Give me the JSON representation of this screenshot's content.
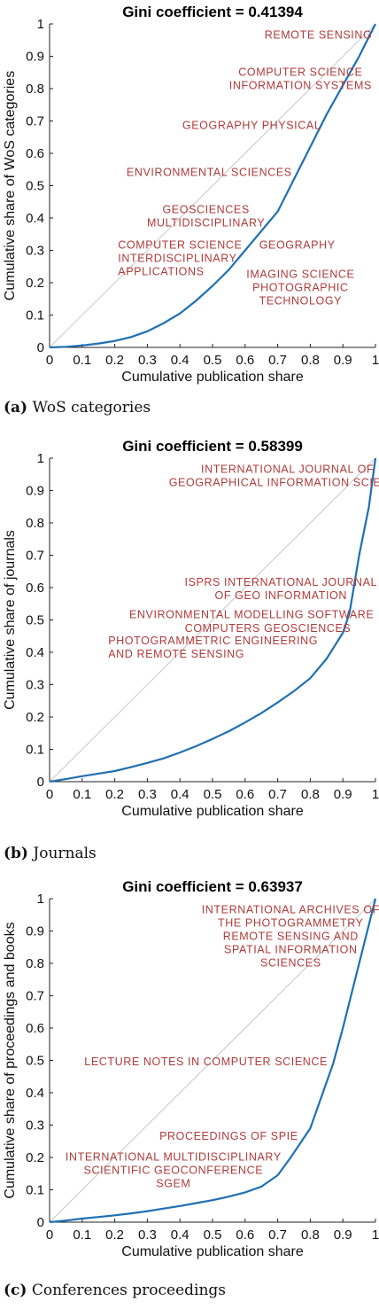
{
  "colors": {
    "curve": "#1f6fb2",
    "diagonal": "#c8c8c8",
    "annotation": "#b03a3a"
  },
  "chart_data": [
    {
      "type": "line",
      "title": "Gini coefficient = 0.41394",
      "xlabel": "Cumulative publication share",
      "ylabel": "Cumulative share of WoS categories",
      "xlim": [
        0,
        1
      ],
      "ylim": [
        0,
        1
      ],
      "x_ticks": [
        "0",
        "0.1",
        "0.2",
        "0.3",
        "0.4",
        "0.5",
        "0.6",
        "0.7",
        "0.8",
        "0.9",
        "1"
      ],
      "y_ticks": [
        "0",
        "0.1",
        "0.2",
        "0.3",
        "0.4",
        "0.5",
        "0.6",
        "0.7",
        "0.8",
        "0.9",
        "1"
      ],
      "x": [
        0,
        0.05,
        0.1,
        0.15,
        0.2,
        0.25,
        0.3,
        0.35,
        0.4,
        0.45,
        0.5,
        0.55,
        0.6,
        0.65,
        0.7,
        0.75,
        0.8,
        0.85,
        0.9,
        0.95,
        1.0
      ],
      "y": [
        0,
        0.002,
        0.006,
        0.012,
        0.02,
        0.032,
        0.05,
        0.075,
        0.105,
        0.145,
        0.19,
        0.24,
        0.3,
        0.36,
        0.42,
        0.52,
        0.62,
        0.72,
        0.81,
        0.9,
        1.0
      ],
      "annotations": [
        {
          "lines": [
            "REMOTE SENSING"
          ],
          "x": 0.99,
          "y": 0.955,
          "anchor": "end"
        },
        {
          "lines": [
            "COMPUTER SCIENCE",
            "INFORMATION SYSTEMS"
          ],
          "x": 0.77,
          "y": 0.84,
          "anchor": "middle"
        },
        {
          "lines": [
            "GEOGRAPHY PHYSICAL"
          ],
          "x": 0.62,
          "y": 0.675,
          "anchor": "middle"
        },
        {
          "lines": [
            "ENVIRONMENTAL SCIENCES"
          ],
          "x": 0.49,
          "y": 0.53,
          "anchor": "middle"
        },
        {
          "lines": [
            "GEOSCIENCES",
            "MULTIDISCIPLINARY"
          ],
          "x": 0.48,
          "y": 0.415,
          "anchor": "middle"
        },
        {
          "lines": [
            "GEOGRAPHY"
          ],
          "x": 0.76,
          "y": 0.305,
          "anchor": "middle"
        },
        {
          "lines": [
            "COMPUTER SCIENCE",
            "INTERDISCIPLINARY",
            "APPLICATIONS"
          ],
          "x": 0.21,
          "y": 0.305,
          "anchor": "start"
        },
        {
          "lines": [
            "IMAGING SCIENCE",
            "PHOTOGRAPHIC",
            "TECHNOLOGY"
          ],
          "x": 0.77,
          "y": 0.215,
          "anchor": "middle"
        }
      ],
      "caption_label": "(a)",
      "caption_text": " WoS categories"
    },
    {
      "type": "line",
      "title": "Gini coefficient = 0.58399",
      "xlabel": "Cumulative publication share",
      "ylabel": "Cumulative share of journals",
      "xlim": [
        0,
        1
      ],
      "ylim": [
        0,
        1
      ],
      "x_ticks": [
        "0",
        "0.1",
        "0.2",
        "0.3",
        "0.4",
        "0.5",
        "0.6",
        "0.7",
        "0.8",
        "0.9",
        "1"
      ],
      "y_ticks": [
        "0",
        "0.1",
        "0.2",
        "0.3",
        "0.4",
        "0.5",
        "0.6",
        "0.7",
        "0.8",
        "0.9",
        "1"
      ],
      "x": [
        0,
        0.05,
        0.1,
        0.15,
        0.2,
        0.25,
        0.3,
        0.35,
        0.4,
        0.45,
        0.5,
        0.55,
        0.6,
        0.65,
        0.7,
        0.75,
        0.8,
        0.85,
        0.9,
        0.92,
        0.95,
        0.98,
        1.0
      ],
      "y": [
        0,
        0.008,
        0.017,
        0.025,
        0.033,
        0.045,
        0.058,
        0.072,
        0.09,
        0.11,
        0.132,
        0.156,
        0.183,
        0.212,
        0.245,
        0.28,
        0.32,
        0.38,
        0.46,
        0.52,
        0.7,
        0.85,
        1.0
      ],
      "annotations": [
        {
          "lines": [
            "INTERNATIONAL JOURNAL OF",
            "GEOGRAPHICAL INFORMATION SCIENCE"
          ],
          "x": 0.73,
          "y": 0.955,
          "anchor": "middle"
        },
        {
          "lines": [
            "ISPRS INTERNATIONAL JOURNAL",
            "OF GEO INFORMATION"
          ],
          "x": 0.71,
          "y": 0.605,
          "anchor": "middle"
        },
        {
          "lines": [
            "ENVIRONMENTAL MODELLING SOFTWARE"
          ],
          "x": 0.62,
          "y": 0.505,
          "anchor": "middle"
        },
        {
          "lines": [
            "COMPUTERS GEOSCIENCES"
          ],
          "x": 0.67,
          "y": 0.463,
          "anchor": "middle"
        },
        {
          "lines": [
            "PHOTOGRAMMETRIC ENGINEERING",
            "AND REMOTE SENSING"
          ],
          "x": 0.18,
          "y": 0.425,
          "anchor": "start"
        }
      ],
      "caption_label": "(b)",
      "caption_text": " Journals"
    },
    {
      "type": "line",
      "title": "Gini coefficient = 0.63937",
      "xlabel": "Cumulative publication share",
      "ylabel": "Cumulative share of proceedings and books",
      "xlim": [
        0,
        1
      ],
      "ylim": [
        0,
        1
      ],
      "x_ticks": [
        "0",
        "0.1",
        "0.2",
        "0.3",
        "0.4",
        "0.5",
        "0.6",
        "0.7",
        "0.8",
        "0.9",
        "1"
      ],
      "y_ticks": [
        "0",
        "0.1",
        "0.2",
        "0.3",
        "0.4",
        "0.5",
        "0.6",
        "0.7",
        "0.8",
        "0.9",
        "1"
      ],
      "x": [
        0,
        0.05,
        0.1,
        0.15,
        0.2,
        0.25,
        0.3,
        0.35,
        0.4,
        0.45,
        0.5,
        0.55,
        0.6,
        0.65,
        0.7,
        0.74,
        0.8,
        0.87,
        0.9,
        0.95,
        1.0
      ],
      "y": [
        0,
        0.005,
        0.011,
        0.016,
        0.021,
        0.027,
        0.034,
        0.042,
        0.05,
        0.059,
        0.068,
        0.079,
        0.092,
        0.11,
        0.145,
        0.2,
        0.29,
        0.49,
        0.6,
        0.8,
        1.0
      ],
      "annotations": [
        {
          "lines": [
            "INTERNATIONAL ARCHIVES OF",
            "THE PHOTOGRAMMETRY",
            "REMOTE SENSING AND",
            "SPATIAL INFORMATION",
            "SCIENCES"
          ],
          "x": 0.74,
          "y": 0.955,
          "anchor": "middle"
        },
        {
          "lines": [
            "LECTURE NOTES IN COMPUTER SCIENCE"
          ],
          "x": 0.48,
          "y": 0.485,
          "anchor": "middle"
        },
        {
          "lines": [
            "PROCEEDINGS OF SPIE"
          ],
          "x": 0.55,
          "y": 0.255,
          "anchor": "middle"
        },
        {
          "lines": [
            "INTERNATIONAL MULTIDISCIPLINARY",
            "SCIENTIFIC GEOCONFERENCE",
            "SGEM"
          ],
          "x": 0.38,
          "y": 0.19,
          "anchor": "middle"
        }
      ],
      "caption_label": "(c)",
      "caption_text": " Conferences proceedings"
    }
  ]
}
